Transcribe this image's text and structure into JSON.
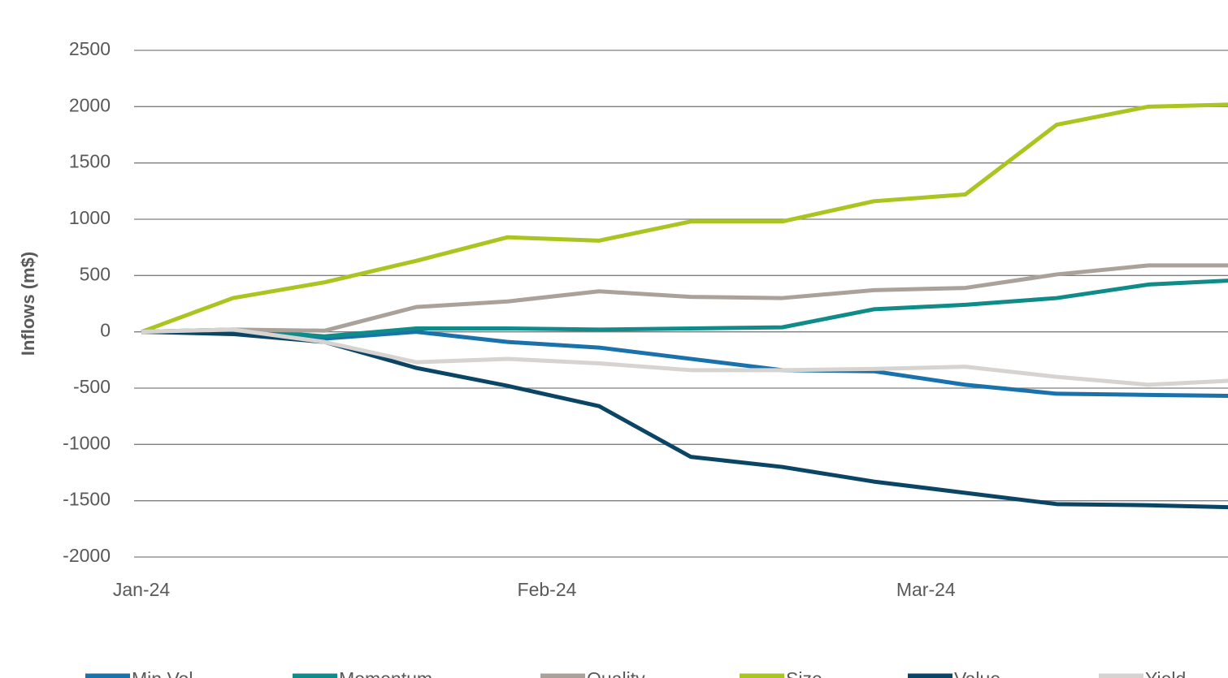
{
  "chart_data": {
    "type": "line",
    "y_label": "Inflows (m$)",
    "x": [
      0,
      1,
      2,
      3,
      4,
      5,
      6,
      7,
      8,
      9,
      10,
      11,
      12
    ],
    "xlim": [
      -0.08,
      11.87
    ],
    "xticks": [
      {
        "value": 0,
        "label": "Jan-24"
      },
      {
        "value": 4.43,
        "label": "Feb-24"
      },
      {
        "value": 8.57,
        "label": "Mar-24"
      }
    ],
    "ylim": [
      -2000,
      2500
    ],
    "yticks": [
      -2000,
      -1500,
      -1000,
      -500,
      0,
      500,
      1000,
      1500,
      2000,
      2500
    ],
    "grid": true,
    "legend": "bottom",
    "series": [
      {
        "name": "Min Vol",
        "color": "#1a72ad",
        "values": [
          0,
          10,
          -60,
          0,
          -90,
          -140,
          -240,
          -340,
          -350,
          -470,
          -550,
          -560,
          -570
        ]
      },
      {
        "name": "Momentum",
        "color": "#0f8c8a",
        "values": [
          0,
          20,
          -40,
          30,
          30,
          20,
          30,
          40,
          200,
          240,
          300,
          420,
          460
        ]
      },
      {
        "name": "Quality",
        "color": "#aaa29a",
        "values": [
          0,
          20,
          10,
          220,
          270,
          360,
          310,
          300,
          370,
          390,
          510,
          590,
          590
        ]
      },
      {
        "name": "Size",
        "color": "#a9c51f",
        "values": [
          0,
          300,
          440,
          630,
          840,
          810,
          980,
          980,
          1160,
          1220,
          1840,
          2000,
          2020
        ]
      },
      {
        "name": "Value",
        "color": "#0b4566",
        "values": [
          0,
          -20,
          -90,
          -320,
          -480,
          -660,
          -1110,
          -1200,
          -1330,
          -1430,
          -1530,
          -1540,
          -1560
        ]
      },
      {
        "name": "Yield",
        "color": "#d6d3d0",
        "values": [
          0,
          20,
          -90,
          -270,
          -240,
          -280,
          -340,
          -340,
          -330,
          -310,
          -400,
          -470,
          -430
        ]
      }
    ]
  }
}
